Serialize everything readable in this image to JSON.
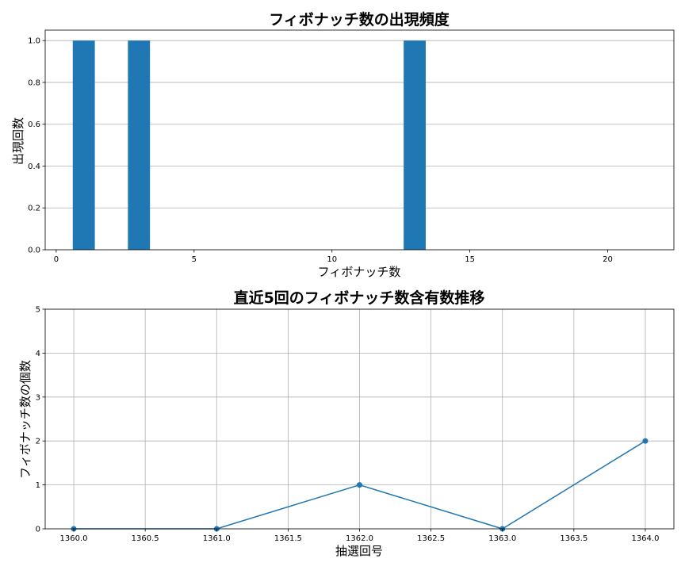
{
  "chart_data": [
    {
      "type": "bar",
      "title": "フィボナッチ数の出現頻度",
      "xlabel": "フィボナッチ数",
      "ylabel": "出現回数",
      "x": [
        1,
        3,
        13
      ],
      "values": [
        1.0,
        1.0,
        1.0
      ],
      "bar_width": 0.8,
      "xlim": [
        -0.4,
        22.4
      ],
      "ylim": [
        0,
        1.05
      ],
      "xticks": [
        0,
        5,
        10,
        15,
        20
      ],
      "yticks": [
        0.0,
        0.2,
        0.4,
        0.6,
        0.8,
        1.0
      ],
      "ytick_decimals": 1,
      "grid": "y",
      "color": "#1f77b4"
    },
    {
      "type": "line",
      "title": "直近5回のフィボナッチ数含有数推移",
      "xlabel": "抽選回号",
      "ylabel": "フィボナッチ数の個数",
      "x": [
        1360,
        1361,
        1362,
        1363,
        1364
      ],
      "values": [
        0,
        0,
        1,
        0,
        2
      ],
      "xlim": [
        1359.8,
        1364.2
      ],
      "ylim": [
        0,
        5
      ],
      "xticks": [
        1360.0,
        1360.5,
        1361.0,
        1361.5,
        1362.0,
        1362.5,
        1363.0,
        1363.5,
        1364.0
      ],
      "xtick_decimals": 1,
      "yticks": [
        0,
        1,
        2,
        3,
        4,
        5
      ],
      "grid": "both",
      "markers": true,
      "color": "#1f77b4"
    }
  ]
}
